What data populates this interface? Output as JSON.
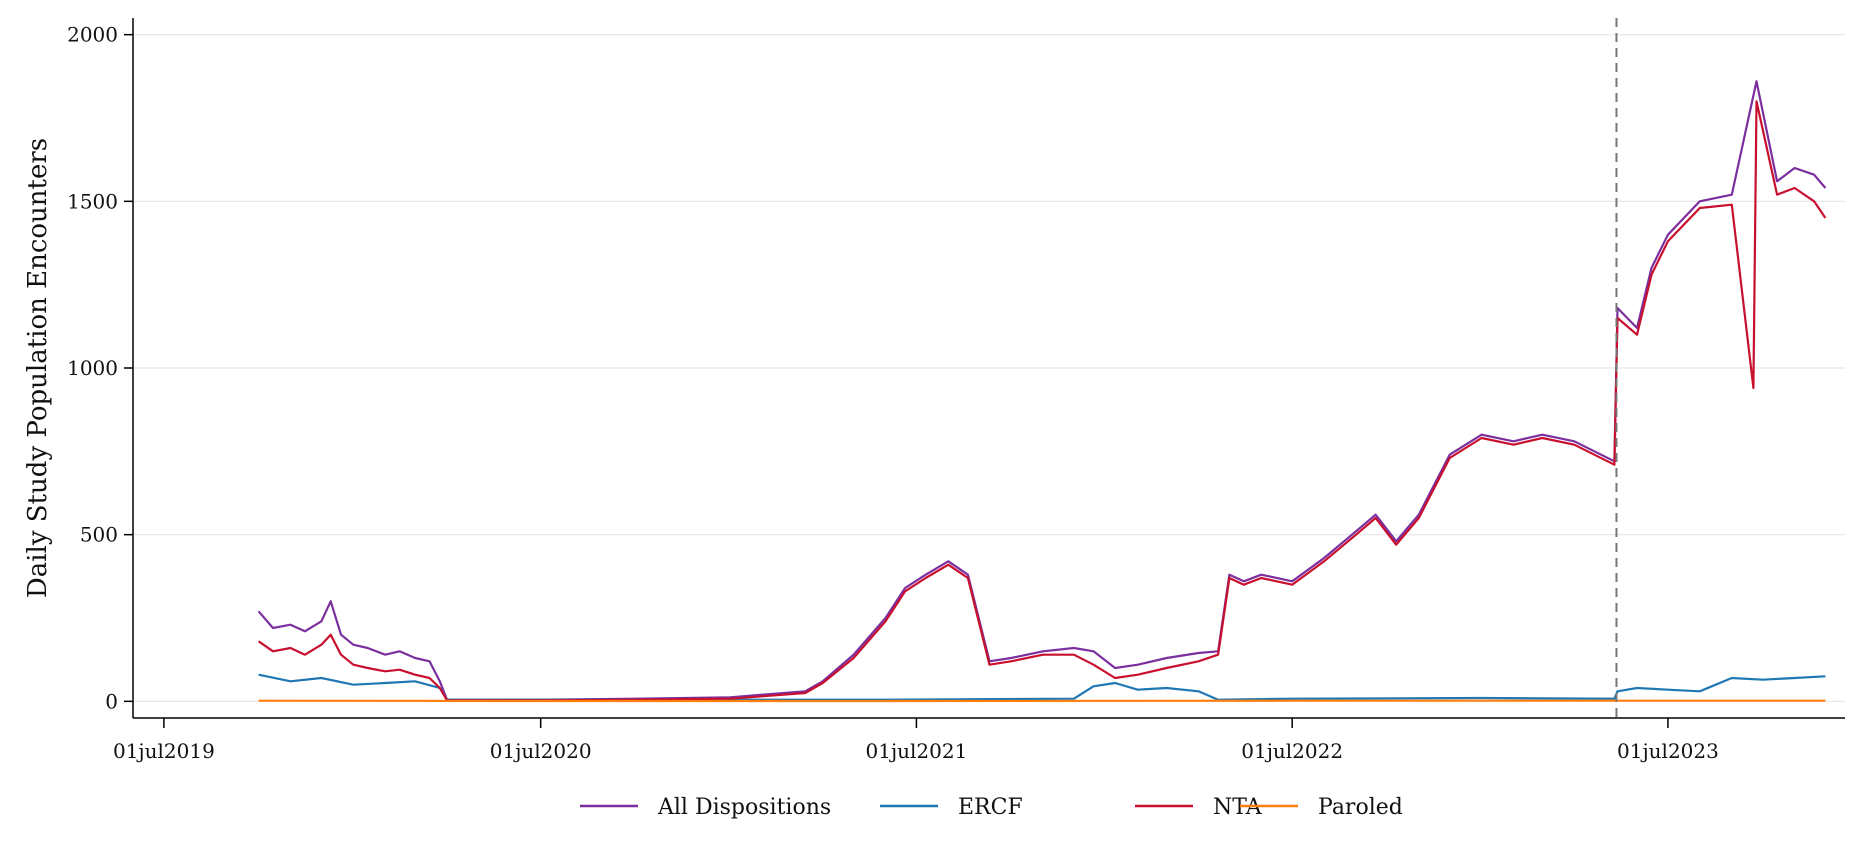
{
  "chart_data": {
    "type": "line",
    "title": "",
    "xlabel": "",
    "ylabel": "Daily Study Population Encounters",
    "xlim": [
      "2019-06-01",
      "2023-12-20"
    ],
    "ylim": [
      -50,
      2050
    ],
    "yticks": [
      0,
      500,
      1000,
      1500,
      2000
    ],
    "ytick_labels": [
      "0",
      "500",
      "1000",
      "1500",
      "2000"
    ],
    "xticks": [
      "2019-07-01",
      "2020-07-01",
      "2021-07-01",
      "2022-07-01",
      "2023-07-01"
    ],
    "xtick_labels": [
      "01jul2019",
      "01jul2020",
      "01jul2021",
      "01jul2022",
      "01jul2023"
    ],
    "grid": "horizontal",
    "legend_position": "bottom",
    "vline": {
      "x": "2023-05-12",
      "style": "dashed",
      "color": "#777777"
    },
    "series": [
      {
        "name": "All Dispositions",
        "color": "#7b2f9e",
        "points": [
          [
            "2019-10-01",
            270
          ],
          [
            "2019-10-15",
            220
          ],
          [
            "2019-11-01",
            230
          ],
          [
            "2019-11-15",
            210
          ],
          [
            "2019-12-01",
            240
          ],
          [
            "2019-12-10",
            300
          ],
          [
            "2019-12-20",
            200
          ],
          [
            "2020-01-01",
            170
          ],
          [
            "2020-01-15",
            160
          ],
          [
            "2020-02-01",
            140
          ],
          [
            "2020-02-15",
            150
          ],
          [
            "2020-03-01",
            130
          ],
          [
            "2020-03-15",
            120
          ],
          [
            "2020-03-25",
            60
          ],
          [
            "2020-04-01",
            5
          ],
          [
            "2020-07-01",
            5
          ],
          [
            "2020-10-01",
            8
          ],
          [
            "2021-01-01",
            12
          ],
          [
            "2021-02-01",
            20
          ],
          [
            "2021-03-15",
            30
          ],
          [
            "2021-04-01",
            60
          ],
          [
            "2021-05-01",
            140
          ],
          [
            "2021-06-01",
            250
          ],
          [
            "2021-06-20",
            340
          ],
          [
            "2021-07-10",
            380
          ],
          [
            "2021-08-01",
            420
          ],
          [
            "2021-08-20",
            380
          ],
          [
            "2021-09-10",
            120
          ],
          [
            "2021-10-01",
            130
          ],
          [
            "2021-11-01",
            150
          ],
          [
            "2021-12-01",
            160
          ],
          [
            "2021-12-20",
            150
          ],
          [
            "2022-01-10",
            100
          ],
          [
            "2022-02-01",
            110
          ],
          [
            "2022-03-01",
            130
          ],
          [
            "2022-04-01",
            145
          ],
          [
            "2022-04-20",
            150
          ],
          [
            "2022-05-01",
            380
          ],
          [
            "2022-05-15",
            360
          ],
          [
            "2022-06-01",
            380
          ],
          [
            "2022-07-01",
            360
          ],
          [
            "2022-08-01",
            430
          ],
          [
            "2022-09-01",
            510
          ],
          [
            "2022-09-20",
            560
          ],
          [
            "2022-10-10",
            480
          ],
          [
            "2022-11-01",
            560
          ],
          [
            "2022-12-01",
            740
          ],
          [
            "2023-01-01",
            800
          ],
          [
            "2023-02-01",
            780
          ],
          [
            "2023-03-01",
            800
          ],
          [
            "2023-04-01",
            780
          ],
          [
            "2023-05-10",
            720
          ],
          [
            "2023-05-13",
            1180
          ],
          [
            "2023-06-01",
            1120
          ],
          [
            "2023-06-15",
            1300
          ],
          [
            "2023-07-01",
            1400
          ],
          [
            "2023-08-01",
            1500
          ],
          [
            "2023-09-01",
            1520
          ],
          [
            "2023-09-25",
            1860
          ],
          [
            "2023-10-15",
            1560
          ],
          [
            "2023-11-01",
            1600
          ],
          [
            "2023-11-20",
            1580
          ],
          [
            "2023-12-01",
            1540
          ]
        ]
      },
      {
        "name": "ERCF",
        "color": "#1f77b4",
        "points": [
          [
            "2019-10-01",
            80
          ],
          [
            "2019-11-01",
            60
          ],
          [
            "2019-12-01",
            70
          ],
          [
            "2020-01-01",
            50
          ],
          [
            "2020-02-01",
            55
          ],
          [
            "2020-03-01",
            60
          ],
          [
            "2020-03-25",
            40
          ],
          [
            "2020-04-01",
            5
          ],
          [
            "2021-01-01",
            5
          ],
          [
            "2021-06-01",
            5
          ],
          [
            "2021-12-01",
            8
          ],
          [
            "2021-12-20",
            45
          ],
          [
            "2022-01-10",
            55
          ],
          [
            "2022-02-01",
            35
          ],
          [
            "2022-03-01",
            40
          ],
          [
            "2022-04-01",
            30
          ],
          [
            "2022-04-20",
            5
          ],
          [
            "2022-07-01",
            8
          ],
          [
            "2023-01-01",
            10
          ],
          [
            "2023-05-10",
            8
          ],
          [
            "2023-05-13",
            30
          ],
          [
            "2023-06-01",
            40
          ],
          [
            "2023-07-01",
            35
          ],
          [
            "2023-08-01",
            30
          ],
          [
            "2023-09-01",
            70
          ],
          [
            "2023-10-01",
            65
          ],
          [
            "2023-11-01",
            70
          ],
          [
            "2023-12-01",
            75
          ]
        ]
      },
      {
        "name": "NTA",
        "color": "#c8102e",
        "points": [
          [
            "2019-10-01",
            180
          ],
          [
            "2019-10-15",
            150
          ],
          [
            "2019-11-01",
            160
          ],
          [
            "2019-11-15",
            140
          ],
          [
            "2019-12-01",
            170
          ],
          [
            "2019-12-10",
            200
          ],
          [
            "2019-12-20",
            140
          ],
          [
            "2020-01-01",
            110
          ],
          [
            "2020-01-15",
            100
          ],
          [
            "2020-02-01",
            90
          ],
          [
            "2020-02-15",
            95
          ],
          [
            "2020-03-01",
            80
          ],
          [
            "2020-03-15",
            70
          ],
          [
            "2020-03-25",
            40
          ],
          [
            "2020-04-01",
            3
          ],
          [
            "2020-07-01",
            3
          ],
          [
            "2020-10-01",
            5
          ],
          [
            "2021-01-01",
            8
          ],
          [
            "2021-02-01",
            15
          ],
          [
            "2021-03-15",
            25
          ],
          [
            "2021-04-01",
            55
          ],
          [
            "2021-05-01",
            130
          ],
          [
            "2021-06-01",
            240
          ],
          [
            "2021-06-20",
            330
          ],
          [
            "2021-07-10",
            370
          ],
          [
            "2021-08-01",
            410
          ],
          [
            "2021-08-20",
            370
          ],
          [
            "2021-09-10",
            110
          ],
          [
            "2021-10-01",
            120
          ],
          [
            "2021-11-01",
            140
          ],
          [
            "2021-12-01",
            140
          ],
          [
            "2021-12-20",
            110
          ],
          [
            "2022-01-10",
            70
          ],
          [
            "2022-02-01",
            80
          ],
          [
            "2022-03-01",
            100
          ],
          [
            "2022-04-01",
            120
          ],
          [
            "2022-04-20",
            140
          ],
          [
            "2022-05-01",
            370
          ],
          [
            "2022-05-15",
            350
          ],
          [
            "2022-06-01",
            370
          ],
          [
            "2022-07-01",
            350
          ],
          [
            "2022-08-01",
            420
          ],
          [
            "2022-09-01",
            500
          ],
          [
            "2022-09-20",
            550
          ],
          [
            "2022-10-10",
            470
          ],
          [
            "2022-11-01",
            550
          ],
          [
            "2022-12-01",
            730
          ],
          [
            "2023-01-01",
            790
          ],
          [
            "2023-02-01",
            770
          ],
          [
            "2023-03-01",
            790
          ],
          [
            "2023-04-01",
            770
          ],
          [
            "2023-05-10",
            710
          ],
          [
            "2023-05-13",
            1150
          ],
          [
            "2023-06-01",
            1100
          ],
          [
            "2023-06-15",
            1280
          ],
          [
            "2023-07-01",
            1380
          ],
          [
            "2023-08-01",
            1480
          ],
          [
            "2023-09-01",
            1490
          ],
          [
            "2023-09-22",
            940
          ],
          [
            "2023-09-25",
            1800
          ],
          [
            "2023-10-15",
            1520
          ],
          [
            "2023-11-01",
            1540
          ],
          [
            "2023-11-20",
            1500
          ],
          [
            "2023-12-01",
            1450
          ]
        ]
      },
      {
        "name": "Paroled",
        "color": "#ff7f0e",
        "points": [
          [
            "2019-10-01",
            2
          ],
          [
            "2020-07-01",
            1
          ],
          [
            "2021-07-01",
            1
          ],
          [
            "2022-07-01",
            2
          ],
          [
            "2023-07-01",
            2
          ],
          [
            "2023-12-01",
            2
          ]
        ]
      }
    ]
  }
}
